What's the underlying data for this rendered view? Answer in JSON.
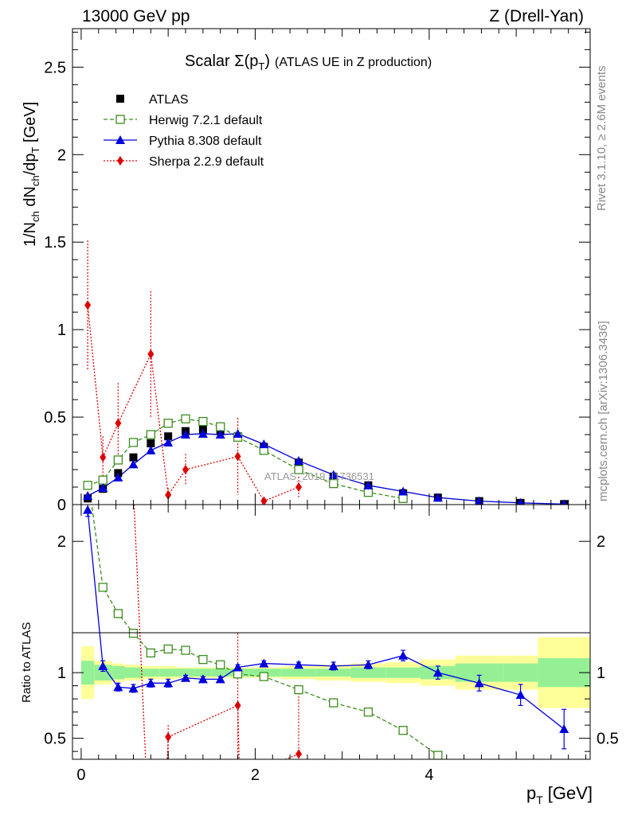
{
  "header": {
    "left": "13000 GeV pp",
    "right": "Z (Drell-Yan)"
  },
  "side": {
    "top": "Rivet 3.1.10, ≥ 2.6M events",
    "bottom": "mcplots.cern.ch [arXiv:1306.3436]"
  },
  "chart_data": {
    "type": "line",
    "title": "Scalar Σ(pT) (ATLAS UE in Z production)",
    "title_main": "Scalar Σ(p",
    "title_sub": "T",
    "title_close": ")",
    "title_rest": "(ATLAS UE in Z production)",
    "watermark": "ATLAS_2019_I1736531",
    "xlabel": "pT [GeV]",
    "xlabel_main": "p",
    "xlabel_sub": "T",
    "xlabel_unit": "[GeV]",
    "ylabel": "1/Nch dNch/dpT [GeV]",
    "ylabel_ratio": "Ratio to ATLAS",
    "xlim": [
      -0.1,
      5.85
    ],
    "ylim_main": [
      0,
      2.72
    ],
    "ylim_ratio": [
      0.34,
      2.28
    ],
    "xticks": [
      0,
      2,
      4
    ],
    "xtick_labels": [
      "0",
      "2",
      "4"
    ],
    "yticks_main": [
      0,
      0.5,
      1,
      1.5,
      2,
      2.5
    ],
    "ytick_labels_main": [
      "0",
      "0.5",
      "1",
      "1.5",
      "2",
      "2.5"
    ],
    "yticks_ratio": [
      0.5,
      1,
      2
    ],
    "ytick_labels_ratio": [
      "0.5",
      "1",
      "2"
    ],
    "legend_position": "top-left",
    "grid": false,
    "x": [
      0.075,
      0.25,
      0.425,
      0.6,
      0.8,
      1.0,
      1.2,
      1.4,
      1.6,
      1.8,
      2.1,
      2.5,
      2.9,
      3.3,
      3.7,
      4.1,
      4.575,
      5.05,
      5.55
    ],
    "bin_edges": [
      0.0,
      0.15,
      0.35,
      0.5,
      0.7,
      0.9,
      1.1,
      1.3,
      1.5,
      1.7,
      1.9,
      2.3,
      2.7,
      3.1,
      3.5,
      3.9,
      4.3,
      4.85,
      5.25,
      5.85
    ],
    "series": [
      {
        "name": "ATLAS",
        "style": "data",
        "color": "#000000",
        "values": [
          0.035,
          0.09,
          0.18,
          0.27,
          0.35,
          0.39,
          0.42,
          0.43,
          0.42,
          0.39,
          0.33,
          0.24,
          0.16,
          0.11,
          0.065,
          0.04,
          0.02,
          0.01,
          0.003
        ]
      },
      {
        "name": "Herwig 7.2.1 default",
        "style": "dashed",
        "marker": "open-square",
        "color": "#3c8c1e",
        "values": [
          0.11,
          0.14,
          0.255,
          0.355,
          0.4,
          0.465,
          0.49,
          0.475,
          0.445,
          0.385,
          0.31,
          0.2,
          0.12,
          0.07,
          0.035,
          null,
          null,
          null,
          null
        ],
        "ratio": [
          2.5,
          1.65,
          1.45,
          1.3,
          1.15,
          1.18,
          1.17,
          1.1,
          1.06,
          0.99,
          0.97,
          0.87,
          0.77,
          0.7,
          0.56,
          0.37,
          null,
          null,
          null
        ],
        "ratio_err": [
          0,
          0.03,
          0.02,
          0.02,
          0.02,
          0.02,
          0.015,
          0.015,
          0.015,
          0.015,
          0.01,
          0.01,
          0.01,
          0.015,
          0.02,
          0.02,
          null,
          null,
          null
        ]
      },
      {
        "name": "Pythia 8.308 default",
        "style": "solid",
        "marker": "filled-triangle",
        "color": "#0000dd",
        "values": [
          0.05,
          0.095,
          0.155,
          0.23,
          0.31,
          0.355,
          0.4,
          0.405,
          0.4,
          0.405,
          0.345,
          0.25,
          0.17,
          0.11,
          0.075,
          0.04,
          0.02,
          0.01,
          0.003
        ],
        "ratio": [
          2.24,
          1.05,
          0.89,
          0.88,
          0.92,
          0.92,
          0.96,
          0.95,
          0.95,
          1.04,
          1.07,
          1.06,
          1.05,
          1.06,
          1.13,
          1.0,
          0.92,
          0.83,
          0.57
        ],
        "ratio_err": [
          0.05,
          0.04,
          0.03,
          0.03,
          0.03,
          0.03,
          0.02,
          0.02,
          0.02,
          0.02,
          0.02,
          0.02,
          0.03,
          0.03,
          0.04,
          0.05,
          0.06,
          0.08,
          0.15
        ]
      },
      {
        "name": "Sherpa 2.2.9 default",
        "style": "dotted",
        "marker": "filled-diamond",
        "color": "#dd0000",
        "values": [
          1.14,
          0.27,
          0.465,
          null,
          0.86,
          0.055,
          0.2,
          null,
          null,
          0.275,
          0.02,
          0.1,
          null,
          null,
          null,
          null,
          null,
          null,
          null
        ],
        "errors": [
          0.37,
          0.12,
          0.23,
          null,
          0.36,
          0.04,
          0.09,
          null,
          null,
          0.22,
          0.02,
          0.06,
          null,
          null,
          null,
          null,
          null,
          null,
          null
        ],
        "ratio": [
          null,
          null,
          null,
          null,
          null,
          0.51,
          null,
          null,
          null,
          0.75,
          null,
          0.38,
          null,
          null,
          null,
          null,
          null,
          null,
          null
        ]
      }
    ],
    "uncertainty_bands": {
      "inner_color": "#95f095",
      "outer_color": "#ffff99",
      "inner": [
        0.09,
        0.06,
        0.05,
        0.04,
        0.03,
        0.03,
        0.03,
        0.03,
        0.03,
        0.03,
        0.03,
        0.03,
        0.03,
        0.04,
        0.04,
        0.05,
        0.07,
        0.07,
        0.11
      ],
      "outer": [
        0.2,
        0.09,
        0.07,
        0.06,
        0.05,
        0.05,
        0.04,
        0.04,
        0.04,
        0.04,
        0.04,
        0.05,
        0.06,
        0.07,
        0.08,
        0.1,
        0.13,
        0.13,
        0.27
      ]
    }
  }
}
